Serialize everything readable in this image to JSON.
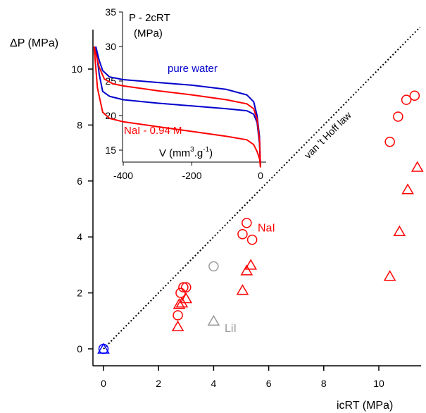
{
  "chart_data": [
    {
      "type": "scatter",
      "title": "",
      "xlabel": "icRT (MPa)",
      "ylabel": "ΔP (MPa)",
      "xlim": [
        -0.6,
        11.5
      ],
      "ylim": [
        -0.7,
        11.6
      ],
      "x_ticks": [
        0,
        2,
        4,
        6,
        8,
        10
      ],
      "y_ticks": [
        0,
        2,
        4,
        6,
        8,
        10
      ],
      "grid": false,
      "reference_line": {
        "label": "van 't Hoff law",
        "style": "dotted",
        "slope": 1,
        "from": [
          0,
          0
        ],
        "to": [
          11.5,
          11.5
        ]
      },
      "annotations": [
        {
          "text": "NaI",
          "color": "#ff0000",
          "x": 5.6,
          "y": 4.2
        },
        {
          "text": "LiI",
          "color": "#999999",
          "x": 4.4,
          "y": 0.6
        }
      ],
      "series": [
        {
          "marker": "circle",
          "color": "#ff0000",
          "points": [
            [
              2.7,
              1.2
            ],
            [
              2.8,
              2.0
            ],
            [
              2.9,
              2.2
            ],
            [
              3.0,
              2.2
            ],
            [
              5.05,
              4.1
            ],
            [
              5.2,
              4.5
            ],
            [
              5.4,
              3.9
            ],
            [
              10.4,
              7.4
            ],
            [
              10.7,
              8.3
            ],
            [
              11.0,
              8.9
            ],
            [
              11.3,
              9.05
            ]
          ]
        },
        {
          "marker": "triangle",
          "color": "#ff0000",
          "points": [
            [
              2.7,
              0.8
            ],
            [
              2.75,
              1.6
            ],
            [
              2.85,
              1.65
            ],
            [
              3.0,
              1.8
            ],
            [
              5.05,
              2.1
            ],
            [
              5.2,
              2.8
            ],
            [
              5.35,
              3.0
            ],
            [
              10.4,
              2.6
            ],
            [
              10.75,
              4.2
            ],
            [
              11.05,
              5.7
            ],
            [
              11.4,
              6.5
            ]
          ]
        },
        {
          "marker": "circle",
          "color": "#999999",
          "points": [
            [
              4.0,
              2.95
            ]
          ]
        },
        {
          "marker": "triangle",
          "color": "#999999",
          "points": [
            [
              4.0,
              1.0
            ]
          ]
        },
        {
          "marker": "circle",
          "color": "#0000ff",
          "points": [
            [
              0,
              0
            ]
          ]
        },
        {
          "marker": "triangle",
          "color": "#0000ff",
          "points": [
            [
              0,
              0
            ]
          ]
        }
      ]
    },
    {
      "type": "line",
      "title": "",
      "xlabel": "V (mm³.g⁻¹)",
      "ylabel": "P - 2cRT (MPa)",
      "xlim": [
        -500,
        10
      ],
      "ylim": [
        12,
        35
      ],
      "x_ticks": [
        -400,
        -200,
        0
      ],
      "y_ticks": [
        15,
        20,
        25,
        30,
        35
      ],
      "legend": "inline labels",
      "series": [
        {
          "name": "pure water",
          "color": "#0000cc",
          "x_curve1": [
            -480,
            -470,
            -460,
            -440,
            -400,
            -300,
            -200,
            -100,
            -40,
            -20,
            -10,
            -3,
            0
          ],
          "y_curve1": [
            30.0,
            28.0,
            26.5,
            25.6,
            25.2,
            24.8,
            24.4,
            23.8,
            23.0,
            22.0,
            20.0,
            17.0,
            12.5
          ],
          "x_curve2": [
            -480,
            -470,
            -460,
            -440,
            -400,
            -300,
            -200,
            -100,
            -40,
            -20,
            -10,
            -3,
            0
          ],
          "y_curve2": [
            30.0,
            26.0,
            23.5,
            22.8,
            22.3,
            21.8,
            21.4,
            21.0,
            20.7,
            20.2,
            19.0,
            16.0,
            12.5
          ]
        },
        {
          "name": "NaI - 0.94 M",
          "color": "#ff0000",
          "x_curve1": [
            -485,
            -470,
            -455,
            -430,
            -400,
            -300,
            -200,
            -100,
            -40,
            -20,
            -10,
            -3,
            0
          ],
          "y_curve1": [
            30.0,
            27.0,
            25.3,
            24.6,
            24.3,
            23.6,
            23.0,
            22.3,
            21.7,
            21.0,
            19.5,
            16.5,
            12.5
          ],
          "x_curve2": [
            -485,
            -475,
            -460,
            -440,
            -400,
            -300,
            -200,
            -100,
            -40,
            -20,
            -10,
            -3,
            0
          ],
          "y_curve2": [
            30.0,
            24.0,
            20.5,
            19.6,
            19.1,
            18.4,
            17.7,
            17.0,
            16.5,
            15.8,
            14.8,
            13.8,
            12.5
          ]
        }
      ]
    }
  ]
}
